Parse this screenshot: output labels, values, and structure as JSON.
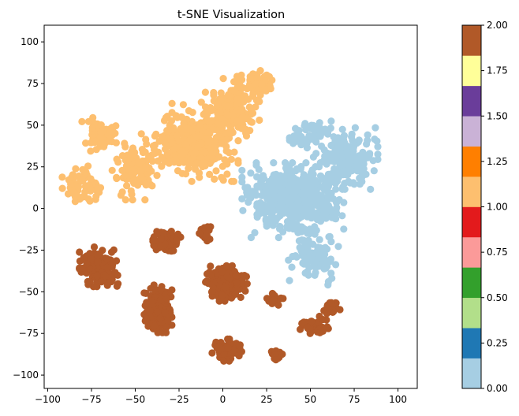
{
  "chart_data": {
    "type": "scatter",
    "title": "t-SNE Visualization",
    "xlabel": "",
    "ylabel": "",
    "xlim": [
      -102,
      111
    ],
    "ylim": [
      -108,
      110
    ],
    "x_ticks": [
      -100,
      -75,
      -50,
      -25,
      0,
      25,
      50,
      75,
      100
    ],
    "y_ticks": [
      -100,
      -75,
      -50,
      -25,
      0,
      25,
      50,
      75,
      100
    ],
    "grid": false,
    "colormap": "Paired",
    "colorbar": {
      "range": [
        0.0,
        2.0
      ],
      "ticks": [
        "0.00",
        "0.25",
        "0.50",
        "0.75",
        "1.00",
        "1.25",
        "1.50",
        "1.75",
        "2.00"
      ],
      "colors": [
        "#a6cee3",
        "#1f78b4",
        "#b2df8a",
        "#33a02c",
        "#fb9a99",
        "#e31a1c",
        "#fdbf6f",
        "#ff7f00",
        "#cab2d6",
        "#6a3d9a",
        "#ffff99",
        "#b15928"
      ]
    },
    "clusters": [
      {
        "label": 0,
        "color": "#a6cee3",
        "center": [
          40,
          5
        ],
        "spread": [
          22,
          17
        ],
        "n": 520
      },
      {
        "label": 0,
        "color": "#a6cee3",
        "center": [
          70,
          30
        ],
        "spread": [
          14,
          14
        ],
        "n": 180
      },
      {
        "label": 0,
        "color": "#a6cee3",
        "center": [
          52,
          -30
        ],
        "spread": [
          11,
          12
        ],
        "n": 90
      },
      {
        "label": 0,
        "color": "#a6cee3",
        "center": [
          50,
          45
        ],
        "spread": [
          9,
          8
        ],
        "n": 50
      },
      {
        "label": 1,
        "color": "#fdbf6f",
        "center": [
          -15,
          40
        ],
        "spread": [
          18,
          18
        ],
        "n": 330
      },
      {
        "label": 1,
        "color": "#fdbf6f",
        "center": [
          -70,
          45
        ],
        "spread": [
          8,
          8
        ],
        "n": 70
      },
      {
        "label": 1,
        "color": "#fdbf6f",
        "center": [
          -80,
          15
        ],
        "spread": [
          9,
          9
        ],
        "n": 60
      },
      {
        "label": 1,
        "color": "#fdbf6f",
        "center": [
          5,
          60
        ],
        "spread": [
          12,
          14
        ],
        "n": 160
      },
      {
        "label": 1,
        "color": "#fdbf6f",
        "center": [
          20,
          75
        ],
        "spread": [
          10,
          7
        ],
        "n": 60
      },
      {
        "label": 1,
        "color": "#fdbf6f",
        "center": [
          -50,
          25
        ],
        "spread": [
          10,
          15
        ],
        "n": 110
      },
      {
        "label": 2,
        "color": "#b15928",
        "center": [
          -70,
          -35
        ],
        "spread": [
          9,
          9
        ],
        "n": 160
      },
      {
        "label": 2,
        "color": "#b15928",
        "center": [
          -37,
          -60
        ],
        "spread": [
          6,
          11
        ],
        "n": 180
      },
      {
        "label": 2,
        "color": "#b15928",
        "center": [
          -32,
          -20
        ],
        "spread": [
          6,
          5
        ],
        "n": 90
      },
      {
        "label": 2,
        "color": "#b15928",
        "center": [
          2,
          -45
        ],
        "spread": [
          9,
          8
        ],
        "n": 220
      },
      {
        "label": 2,
        "color": "#b15928",
        "center": [
          3,
          -85
        ],
        "spread": [
          7,
          5
        ],
        "n": 90
      },
      {
        "label": 2,
        "color": "#b15928",
        "center": [
          -10,
          -15
        ],
        "spread": [
          3,
          4
        ],
        "n": 30
      },
      {
        "label": 2,
        "color": "#b15928",
        "center": [
          30,
          -55
        ],
        "spread": [
          4,
          3
        ],
        "n": 25
      },
      {
        "label": 2,
        "color": "#b15928",
        "center": [
          52,
          -70
        ],
        "spread": [
          8,
          4
        ],
        "n": 45
      },
      {
        "label": 2,
        "color": "#b15928",
        "center": [
          62,
          -60
        ],
        "spread": [
          4,
          4
        ],
        "n": 30
      },
      {
        "label": 2,
        "color": "#b15928",
        "center": [
          30,
          -88
        ],
        "spread": [
          3,
          3
        ],
        "n": 15
      }
    ]
  }
}
